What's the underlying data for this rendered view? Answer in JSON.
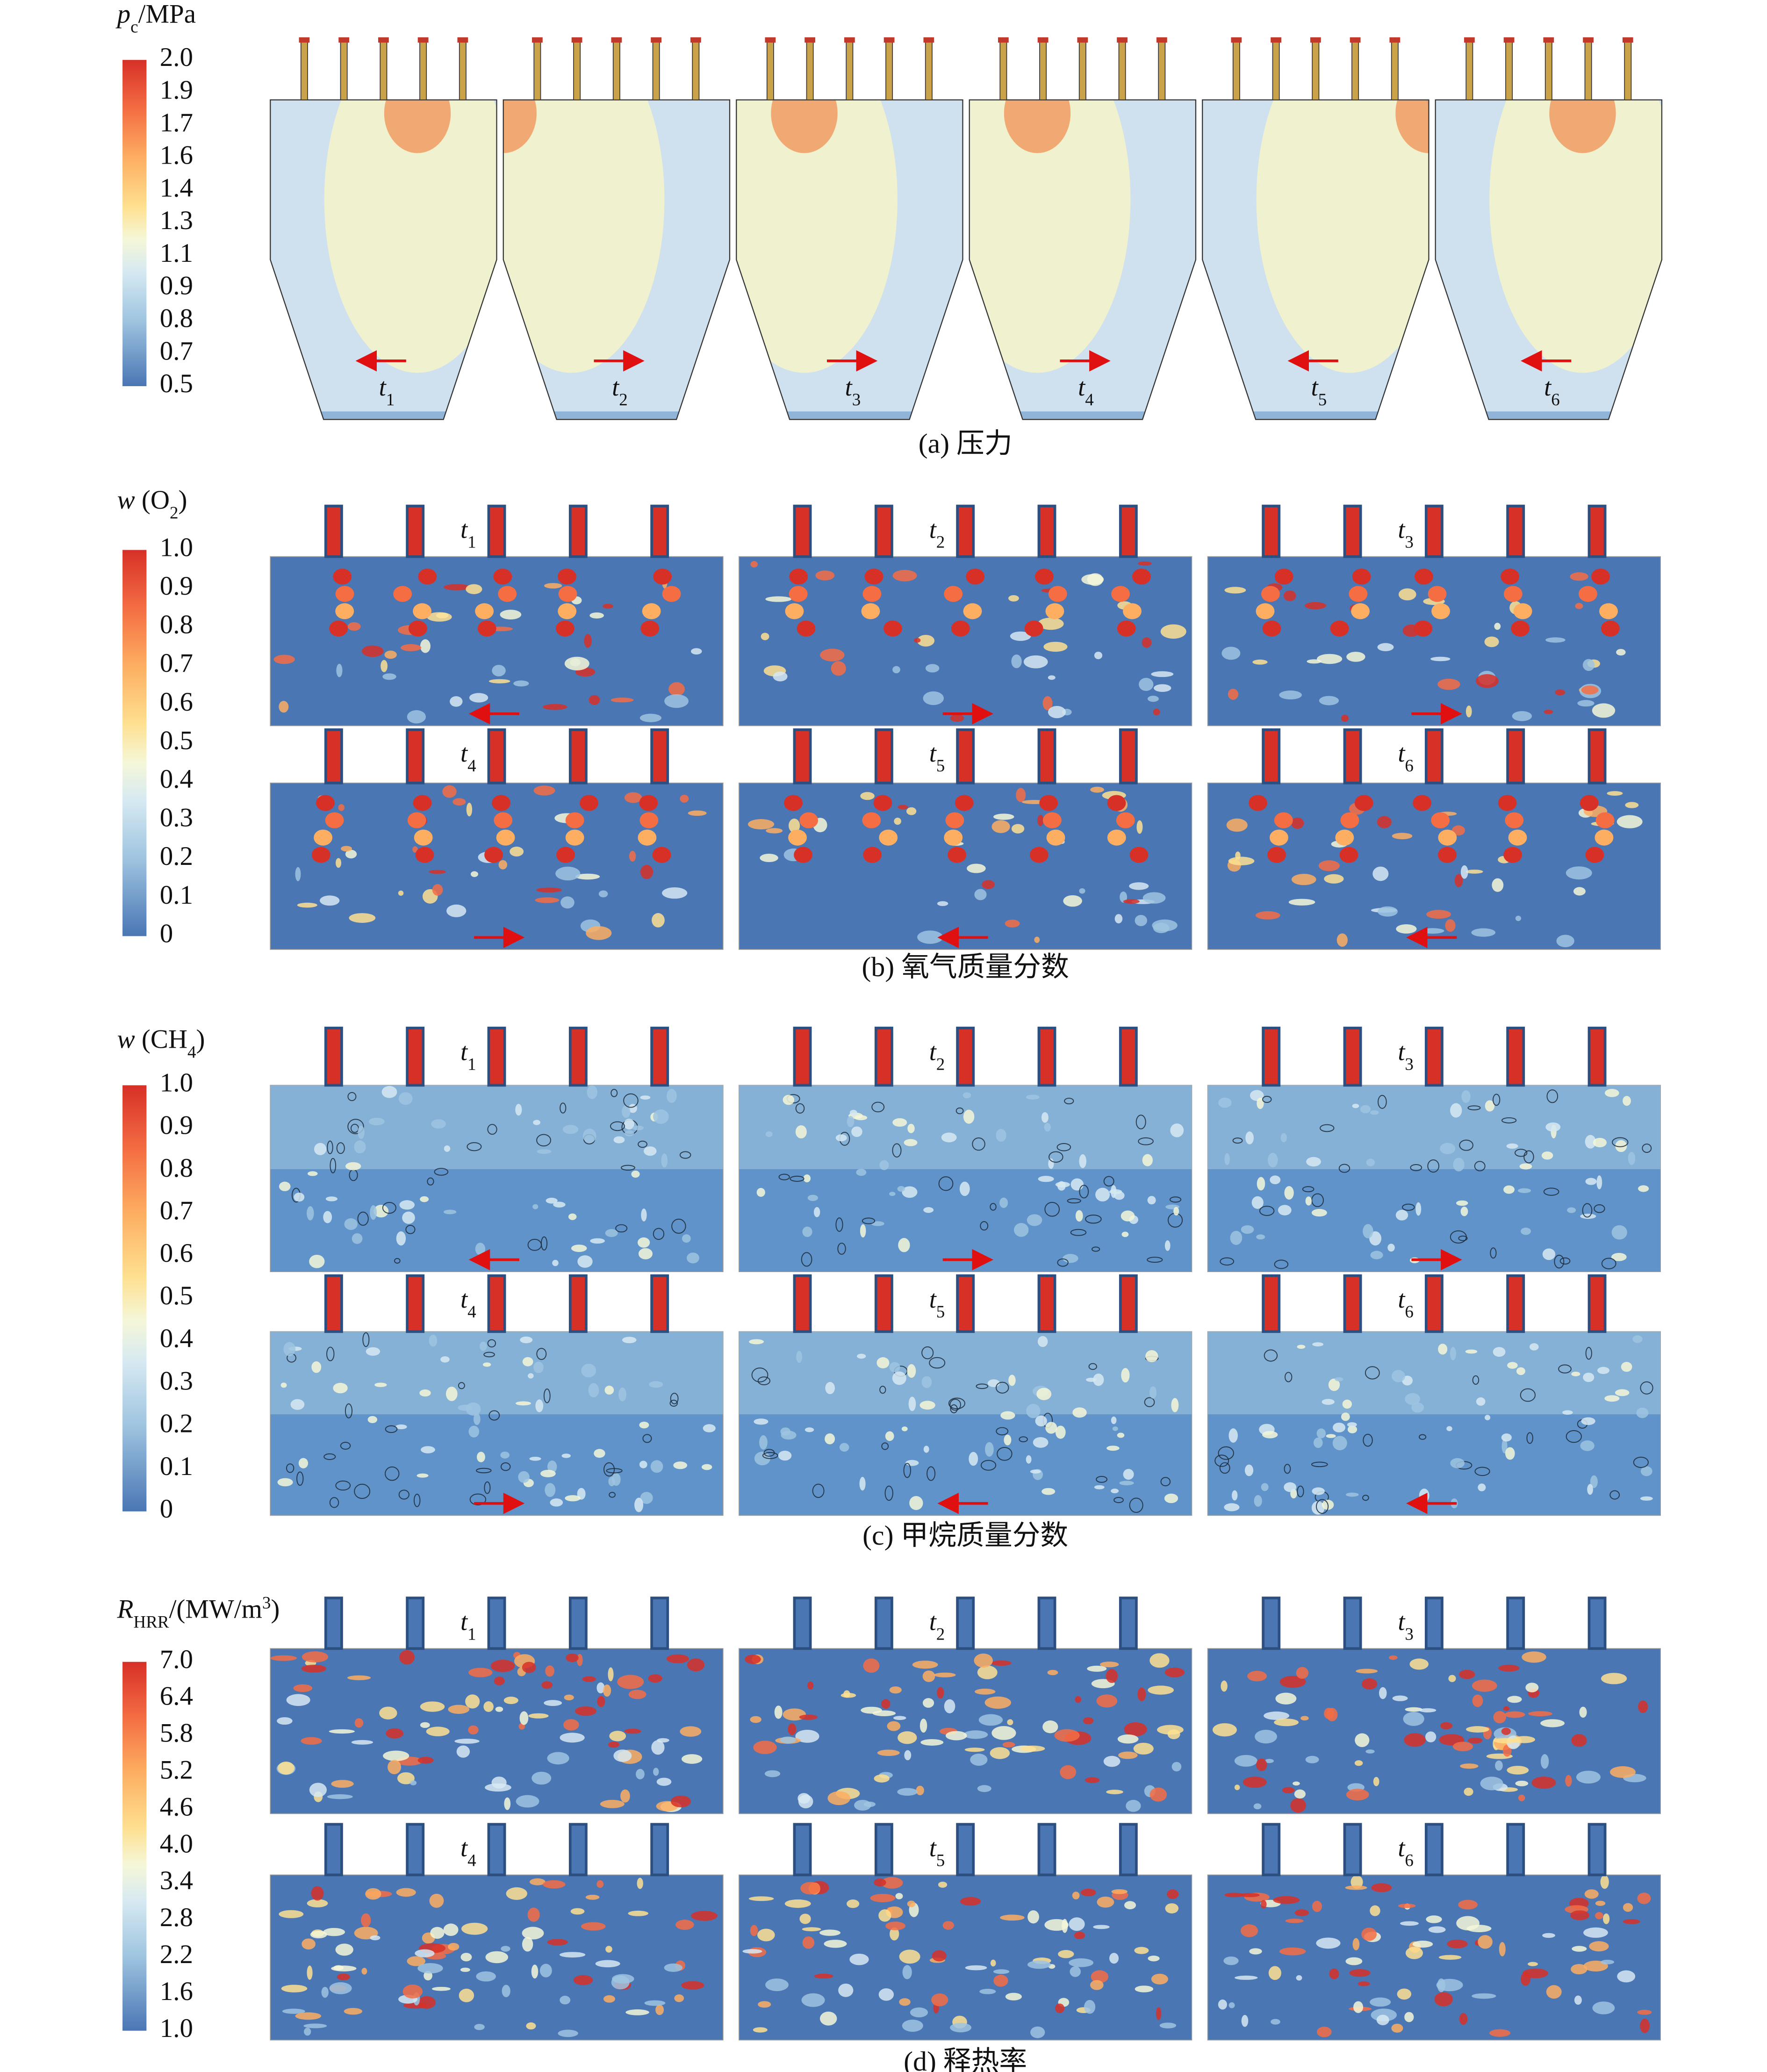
{
  "panels": [
    {
      "colorbar": {
        "label": [
          {
            "t": "p",
            "style": "italic"
          },
          {
            "t": "c",
            "style": "sub"
          },
          {
            "t": "/MPa"
          }
        ],
        "ticks": [
          "2.0",
          "1.9",
          "1.7",
          "1.6",
          "1.4",
          "1.3",
          "1.1",
          "0.9",
          "0.8",
          "0.7",
          "0.5"
        ]
      },
      "frames": [
        {
          "label": "t",
          "index": "1",
          "arrow": "left"
        },
        {
          "label": "t",
          "index": "2",
          "arrow": "right"
        },
        {
          "label": "t",
          "index": "3",
          "arrow": "right"
        },
        {
          "label": "t",
          "index": "4",
          "arrow": "right"
        },
        {
          "label": "t",
          "index": "5",
          "arrow": "left"
        },
        {
          "label": "t",
          "index": "6",
          "arrow": "left"
        }
      ],
      "caption": "(a) 压力"
    },
    {
      "colorbar": {
        "label": [
          {
            "t": "w",
            "style": "italic"
          },
          {
            "t": " (O"
          },
          {
            "t": "2",
            "style": "sub"
          },
          {
            "t": ")"
          }
        ],
        "ticks": [
          "1.0",
          "0.9",
          "0.8",
          "0.7",
          "0.6",
          "0.5",
          "0.4",
          "0.3",
          "0.2",
          "0.1",
          "0"
        ]
      },
      "frames": [
        {
          "label": "t",
          "index": "1",
          "arrow": "left"
        },
        {
          "label": "t",
          "index": "2",
          "arrow": "right"
        },
        {
          "label": "t",
          "index": "3",
          "arrow": "right"
        },
        {
          "label": "t",
          "index": "4",
          "arrow": "right"
        },
        {
          "label": "t",
          "index": "5",
          "arrow": "left"
        },
        {
          "label": "t",
          "index": "6",
          "arrow": "left"
        }
      ],
      "caption": "(b) 氧气质量分数"
    },
    {
      "colorbar": {
        "label": [
          {
            "t": "w",
            "style": "italic"
          },
          {
            "t": " (CH"
          },
          {
            "t": "4",
            "style": "sub"
          },
          {
            "t": ")"
          }
        ],
        "ticks": [
          "1.0",
          "0.9",
          "0.8",
          "0.7",
          "0.6",
          "0.5",
          "0.4",
          "0.3",
          "0.2",
          "0.1",
          "0"
        ]
      },
      "frames": [
        {
          "label": "t",
          "index": "1",
          "arrow": "left"
        },
        {
          "label": "t",
          "index": "2",
          "arrow": "right"
        },
        {
          "label": "t",
          "index": "3",
          "arrow": "right"
        },
        {
          "label": "t",
          "index": "4",
          "arrow": "right"
        },
        {
          "label": "t",
          "index": "5",
          "arrow": "left"
        },
        {
          "label": "t",
          "index": "6",
          "arrow": "left"
        }
      ],
      "caption": "(c) 甲烷质量分数"
    },
    {
      "colorbar": {
        "label": [
          {
            "t": "R",
            "style": "italic"
          },
          {
            "t": "HRR",
            "style": "sub"
          },
          {
            "t": "/(MW/m"
          },
          {
            "t": "3",
            "style": "sup"
          },
          {
            "t": ")"
          }
        ],
        "ticks": [
          "7.0",
          "6.4",
          "5.8",
          "5.2",
          "4.6",
          "4.0",
          "3.4",
          "2.8",
          "2.2",
          "1.6",
          "1.0"
        ]
      },
      "frames": [
        {
          "label": "t",
          "index": "1"
        },
        {
          "label": "t",
          "index": "2"
        },
        {
          "label": "t",
          "index": "3"
        },
        {
          "label": "t",
          "index": "4"
        },
        {
          "label": "t",
          "index": "5"
        },
        {
          "label": "t",
          "index": "6"
        }
      ],
      "caption": "(d) 释热率"
    }
  ]
}
